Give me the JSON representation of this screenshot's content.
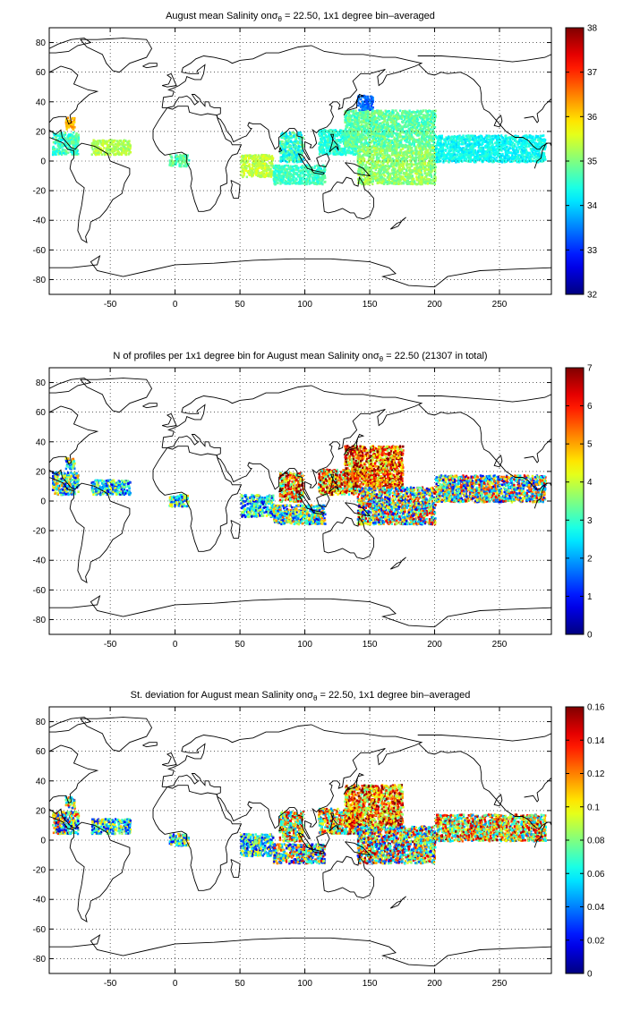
{
  "chart_data": [
    {
      "type": "heatmap",
      "title_pre": "August mean Salinity on",
      "title_sym": "σ",
      "title_sub": "θ",
      "title_post": " = 22.50, 1x1 degree bin–averaged",
      "xlabel": "",
      "ylabel": "",
      "xlim": [
        -97,
        290
      ],
      "ylim": [
        -90,
        90
      ],
      "xticks": [
        -50,
        0,
        50,
        100,
        150,
        200,
        250
      ],
      "yticks": [
        -80,
        -60,
        -40,
        -20,
        0,
        20,
        40,
        60,
        80
      ],
      "grid": true,
      "colorbar": {
        "min": 32,
        "max": 38,
        "ticks": [
          32,
          33,
          34,
          35,
          36,
          37,
          38
        ],
        "colormap": "jet"
      },
      "clusters": [
        {
          "lon": [
            -95,
            -75
          ],
          "lat": [
            5,
            20
          ],
          "value": 34.6,
          "spread": 0.5
        },
        {
          "lon": [
            -85,
            -78
          ],
          "lat": [
            22,
            30
          ],
          "value": 36.2,
          "spread": 0.3
        },
        {
          "lon": [
            -65,
            -35
          ],
          "lat": [
            5,
            15
          ],
          "value": 35.3,
          "spread": 0.3
        },
        {
          "lon": [
            -5,
            10
          ],
          "lat": [
            -3,
            5
          ],
          "value": 34.8,
          "spread": 0.4
        },
        {
          "lon": [
            50,
            75
          ],
          "lat": [
            -10,
            5
          ],
          "value": 35.4,
          "spread": 0.3
        },
        {
          "lon": [
            80,
            98
          ],
          "lat": [
            0,
            20
          ],
          "value": 34.5,
          "spread": 0.6
        },
        {
          "lon": [
            75,
            115
          ],
          "lat": [
            -15,
            -2
          ],
          "value": 34.6,
          "spread": 0.3
        },
        {
          "lon": [
            110,
            140
          ],
          "lat": [
            5,
            22
          ],
          "value": 34.5,
          "spread": 0.3
        },
        {
          "lon": [
            130,
            200
          ],
          "lat": [
            10,
            35
          ],
          "value": 34.8,
          "spread": 0.4
        },
        {
          "lon": [
            140,
            200
          ],
          "lat": [
            -15,
            10
          ],
          "value": 35.1,
          "spread": 0.4
        },
        {
          "lon": [
            200,
            285
          ],
          "lat": [
            0,
            18
          ],
          "value": 34.3,
          "spread": 0.3
        },
        {
          "lon": [
            140,
            152
          ],
          "lat": [
            35,
            45
          ],
          "value": 33.4,
          "spread": 0.3
        }
      ]
    },
    {
      "type": "heatmap",
      "title_pre": "N of profiles per 1x1 degree bin for August mean Salinity on",
      "title_sym": "σ",
      "title_sub": "θ",
      "title_post": " = 22.50 (21307 in total)",
      "xlabel": "",
      "ylabel": "",
      "xlim": [
        -97,
        290
      ],
      "ylim": [
        -90,
        90
      ],
      "xticks": [
        -50,
        0,
        50,
        100,
        150,
        200,
        250
      ],
      "yticks": [
        -80,
        -60,
        -40,
        -20,
        0,
        20,
        40,
        60,
        80
      ],
      "grid": true,
      "colorbar": {
        "min": 0,
        "max": 7,
        "ticks": [
          0,
          1,
          2,
          3,
          4,
          5,
          6,
          7
        ],
        "colormap": "jet"
      },
      "clusters": [
        {
          "lon": [
            -95,
            -75
          ],
          "lat": [
            5,
            20
          ],
          "value": 3,
          "spread": 2.5
        },
        {
          "lon": [
            -85,
            -78
          ],
          "lat": [
            22,
            30
          ],
          "value": 3,
          "spread": 2.5
        },
        {
          "lon": [
            -65,
            -35
          ],
          "lat": [
            5,
            15
          ],
          "value": 2.5,
          "spread": 2
        },
        {
          "lon": [
            -5,
            10
          ],
          "lat": [
            -3,
            5
          ],
          "value": 3,
          "spread": 2
        },
        {
          "lon": [
            50,
            75
          ],
          "lat": [
            -10,
            5
          ],
          "value": 2.5,
          "spread": 2
        },
        {
          "lon": [
            80,
            98
          ],
          "lat": [
            0,
            20
          ],
          "value": 5,
          "spread": 2.5
        },
        {
          "lon": [
            75,
            115
          ],
          "lat": [
            -15,
            -2
          ],
          "value": 3,
          "spread": 2.5
        },
        {
          "lon": [
            110,
            140
          ],
          "lat": [
            5,
            22
          ],
          "value": 5,
          "spread": 2.5
        },
        {
          "lon": [
            130,
            175
          ],
          "lat": [
            10,
            38
          ],
          "value": 5.5,
          "spread": 2
        },
        {
          "lon": [
            140,
            200
          ],
          "lat": [
            -15,
            10
          ],
          "value": 3.5,
          "spread": 3
        },
        {
          "lon": [
            200,
            285
          ],
          "lat": [
            0,
            18
          ],
          "value": 3.5,
          "spread": 3
        }
      ]
    },
    {
      "type": "heatmap",
      "title_pre": "St. deviation for August mean Salinity on",
      "title_sym": "σ",
      "title_sub": "θ",
      "title_post": " = 22.50, 1x1 degree bin–averaged",
      "xlabel": "",
      "ylabel": "",
      "xlim": [
        -97,
        290
      ],
      "ylim": [
        -90,
        90
      ],
      "xticks": [
        -50,
        0,
        50,
        100,
        150,
        200,
        250
      ],
      "yticks": [
        -80,
        -60,
        -40,
        -20,
        0,
        20,
        40,
        60,
        80
      ],
      "grid": true,
      "colorbar": {
        "min": 0,
        "max": 0.16,
        "ticks": [
          0,
          0.02,
          0.04,
          0.06,
          0.08,
          0.1,
          0.12,
          0.14,
          0.16
        ],
        "colormap": "jet"
      },
      "clusters": [
        {
          "lon": [
            -95,
            -75
          ],
          "lat": [
            5,
            20
          ],
          "value": 0.07,
          "spread": 0.07
        },
        {
          "lon": [
            -85,
            -78
          ],
          "lat": [
            22,
            30
          ],
          "value": 0.08,
          "spread": 0.06
        },
        {
          "lon": [
            -65,
            -35
          ],
          "lat": [
            5,
            15
          ],
          "value": 0.06,
          "spread": 0.05
        },
        {
          "lon": [
            -5,
            10
          ],
          "lat": [
            -3,
            5
          ],
          "value": 0.07,
          "spread": 0.05
        },
        {
          "lon": [
            50,
            75
          ],
          "lat": [
            -10,
            5
          ],
          "value": 0.06,
          "spread": 0.05
        },
        {
          "lon": [
            80,
            98
          ],
          "lat": [
            0,
            20
          ],
          "value": 0.1,
          "spread": 0.06
        },
        {
          "lon": [
            75,
            115
          ],
          "lat": [
            -15,
            -2
          ],
          "value": 0.08,
          "spread": 0.07
        },
        {
          "lon": [
            110,
            140
          ],
          "lat": [
            5,
            22
          ],
          "value": 0.1,
          "spread": 0.06
        },
        {
          "lon": [
            130,
            175
          ],
          "lat": [
            10,
            38
          ],
          "value": 0.12,
          "spread": 0.05
        },
        {
          "lon": [
            140,
            200
          ],
          "lat": [
            -15,
            10
          ],
          "value": 0.09,
          "spread": 0.07
        },
        {
          "lon": [
            200,
            285
          ],
          "lat": [
            0,
            18
          ],
          "value": 0.1,
          "spread": 0.06
        }
      ]
    }
  ]
}
